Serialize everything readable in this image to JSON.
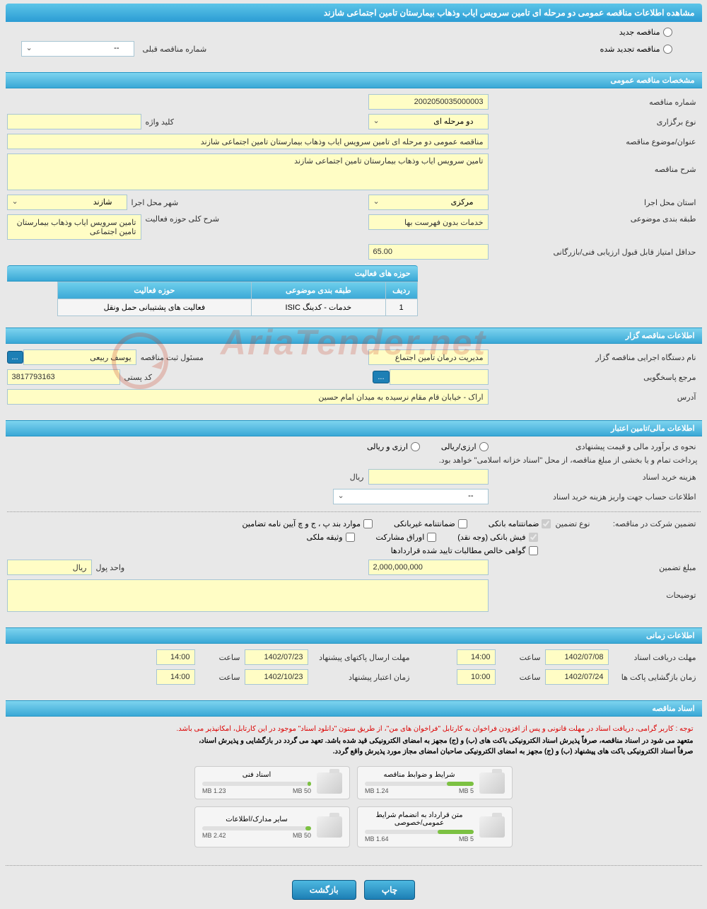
{
  "page_title": "مشاهده اطلاعات مناقصه عمومی دو مرحله ای تامین سرویس ایاب وذهاب بیمارستان تامین اجتماعی شازند",
  "status": {
    "new_label": "مناقصه جدید",
    "renewed_label": "مناقصه تجدید شده",
    "prev_no_label": "شماره مناقصه قبلی",
    "prev_no_value": "--"
  },
  "sections": {
    "general": "مشخصات مناقصه عمومی",
    "bidder": "اطلاعات مناقصه گزار",
    "finance": "اطلاعات مالی/تامین اعتبار",
    "time": "اطلاعات زمانی",
    "docs": "اسناد مناقصه"
  },
  "general": {
    "tender_no_label": "شماره مناقصه",
    "tender_no": "2002050035000003",
    "type_label": "نوع برگزاری",
    "type_value": "دو مرحله ای",
    "keyword_label": "کلید واژه",
    "keyword_value": "",
    "subject_label": "عنوان/موضوع مناقصه",
    "subject_value": "مناقصه عمومی دو مرحله ای تامین سرویس ایاب وذهاب بیمارستان تامین اجتماعی شازند",
    "desc_label": "شرح مناقصه",
    "desc_value": "تامین سرویس ایاب وذهاب بیمارستان تامین اجتماعی شازند",
    "province_label": "استان محل اجرا",
    "province_value": "مرکزی",
    "city_label": "شهر محل اجرا",
    "city_value": "شازند",
    "category_label": "طبقه بندی موضوعی",
    "category_value": "خدمات بدون فهرست بها",
    "scope_label": "شرح کلی حوزه فعالیت",
    "scope_value": "تامین سرویس ایاب وذهاب بیمارستان تامین اجتماعی",
    "minscore_label": "حداقل امتیاز قابل قبول ارزیابی فنی/بازرگانی",
    "minscore_value": "65.00",
    "activity_title": "حوزه های فعالیت",
    "activity_cols": {
      "row": "ردیف",
      "cat": "طبقه بندی موضوعی",
      "scope": "حوزه فعالیت"
    },
    "activity_rows": [
      {
        "row": "1",
        "cat": "خدمات - کدینگ ISIC",
        "scope": "فعالیت های پشتیبانی حمل ونقل"
      }
    ]
  },
  "bidder": {
    "org_label": "نام دستگاه اجرایی مناقصه گزار",
    "org_value": "مدیریت درمان تامین اجتماع",
    "reg_label": "مسئول ثبت مناقصه",
    "reg_value": "یوسف ربیعی",
    "resp_label": "مرجع پاسخگویی",
    "resp_value": "",
    "postal_label": "کد پستی",
    "postal_value": "3817793163",
    "addr_label": "آدرس",
    "addr_value": "اراک - خیابان قام مقام نرسیده به میدان امام حسین"
  },
  "finance": {
    "est_label": "نحوه ی برآورد مالی و قیمت پیشنهادی",
    "cur_fx": "ارزی/ریالی",
    "cur_both": "ارزی و ریالی",
    "treasury_note": "پرداخت تمام و یا بخشی از مبلغ مناقصه، از محل \"اسناد خزانه اسلامی\" خواهد بود.",
    "doc_cost_label": "هزینه خرید اسناد",
    "doc_cost_value": "",
    "doc_cost_unit": "ریال",
    "account_label": "اطلاعات حساب جهت واریز هزینه خرید اسناد",
    "account_value": "--",
    "guarantee_label": "تضمین شرکت در مناقصه:",
    "guarantee_type_label": "نوع تضمین",
    "g_bank": "ضمانتنامه بانکی",
    "g_nonbank": "ضمانتنامه غیربانکی",
    "g_abc": "موارد بند پ ، ج و چ آیین نامه تضامین",
    "g_cash": "فیش بانکی (وجه نقد)",
    "g_bond": "اوراق مشارکت",
    "g_prop": "وثیقه ملکی",
    "g_cert": "گواهی خالص مطالبات تایید شده قراردادها",
    "amount_label": "مبلغ تضمین",
    "amount_value": "2,000,000,000",
    "unit_label": "واحد پول",
    "unit_value": "ریال",
    "notes_label": "توضیحات",
    "notes_value": ""
  },
  "time": {
    "recv_label": "مهلت دریافت اسناد",
    "recv_date": "1402/07/08",
    "hour_label": "ساعت",
    "recv_hour": "14:00",
    "send_label": "مهلت ارسال پاکتهای پیشنهاد",
    "send_date": "1402/07/23",
    "send_hour": "14:00",
    "open_label": "زمان بازگشایی پاکت ها",
    "open_date": "1402/07/24",
    "open_hour": "10:00",
    "valid_label": "زمان اعتبار پیشنهاد",
    "valid_date": "1402/10/23",
    "valid_hour": "14:00"
  },
  "docs": {
    "note_red": "توجه : کاربر گرامی، دریافت اسناد در مهلت قانونی و پس از افزودن فراخوان به کارتابل \"فراخوان های من\"، از طریق ستون \"دانلود اسناد\" موجود در این کارتابل، امکانپذیر می باشد.",
    "note_blk1": "متعهد می شود در اسناد مناقصه، صرفاً پذیرش اسناد الکترونیکی باکت های (ب) و (ج) مجهز به امضای الکترونیکی قید شده باشد. تعهد می گردد در بازگشایی و پذیرش اسناد،",
    "note_blk2": "صرفاً اسناد الکترونیکی باکت های پیشنهاد (ب) و (ج) مجهز به امضای الکترونیکی صاحبان امضای مجاز مورد پذیرش واقع گردد.",
    "tiles": [
      {
        "title": "شرایط و ضوابط مناقصه",
        "used": "1.24 MB",
        "total": "5 MB",
        "pct": 25
      },
      {
        "title": "اسناد فنی",
        "used": "1.23 MB",
        "total": "50 MB",
        "pct": 3
      },
      {
        "title": "متن قرارداد به انضمام شرایط عمومی/خصوصی",
        "used": "1.64 MB",
        "total": "5 MB",
        "pct": 33
      },
      {
        "title": "سایر مدارک/اطلاعات",
        "used": "2.42 MB",
        "total": "50 MB",
        "pct": 5
      }
    ]
  },
  "buttons": {
    "print": "چاپ",
    "back": "بازگشت"
  },
  "watermark": "AriaTender.net",
  "colors": {
    "header_grad_top": "#5cc5e8",
    "header_grad_bot": "#2b9cd4",
    "field_bg": "#fffdc5",
    "field_border": "#a8c6d4",
    "btn_bg_top": "#4db8e0",
    "btn_bg_bot": "#1d7fb5"
  }
}
